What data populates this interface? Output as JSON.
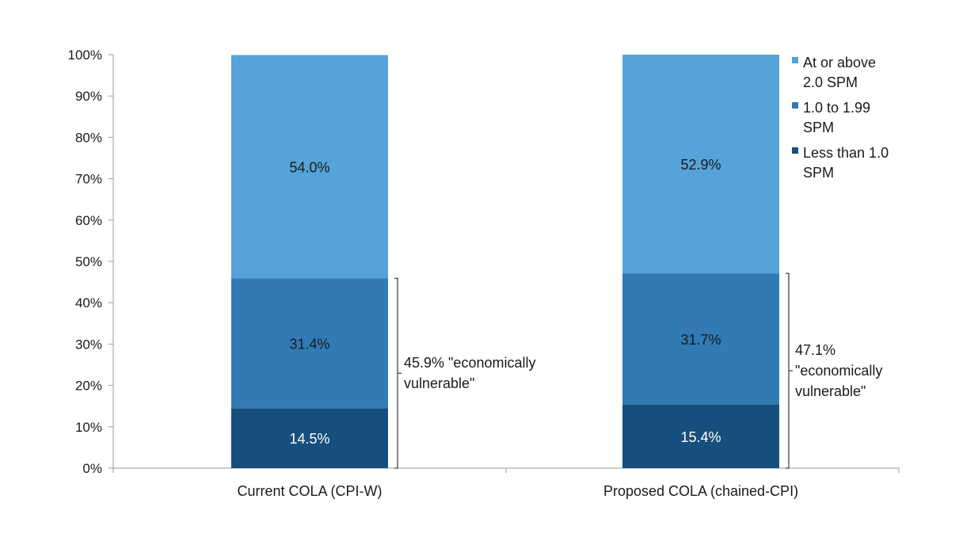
{
  "chart_data": {
    "type": "bar",
    "stacked": true,
    "categories": [
      "Current COLA (CPI-W)",
      "Proposed COLA (chained-CPI)"
    ],
    "series": [
      {
        "name": "Less than 1.0 SPM",
        "values": [
          14.5,
          15.4
        ],
        "labels": [
          "14.5%",
          "15.4%"
        ],
        "color": "#164f7e"
      },
      {
        "name": "1.0 to 1.99 SPM",
        "values": [
          31.4,
          31.7
        ],
        "labels": [
          "31.4%",
          "31.7%"
        ],
        "color": "#317ab3"
      },
      {
        "name": "At or above 2.0 SPM",
        "values": [
          54.0,
          52.9
        ],
        "labels": [
          "54.0%",
          "52.9%"
        ],
        "color": "#55a3d9"
      }
    ],
    "legend_order": [
      2,
      1,
      0
    ],
    "legend": {
      "placement": "top-right",
      "entries": [
        {
          "lines": [
            "At or above",
            "2.0 SPM"
          ],
          "color": "#55a3d9"
        },
        {
          "lines": [
            "1.0 to 1.99",
            "SPM"
          ],
          "color": "#317ab3"
        },
        {
          "lines": [
            "Less than 1.0",
            "SPM"
          ],
          "color": "#164f7e"
        }
      ]
    },
    "ylim": [
      0,
      100
    ],
    "yticks": [
      "0%",
      "10%",
      "20%",
      "30%",
      "40%",
      "50%",
      "60%",
      "70%",
      "80%",
      "90%",
      "100%"
    ],
    "grid": false,
    "annotations": [
      {
        "category": 0,
        "from": 0,
        "to": 45.9,
        "lines": [
          "45.9% \"economically",
          "vulnerable\""
        ]
      },
      {
        "category": 1,
        "from": 0,
        "to": 47.1,
        "lines": [
          "47.1%",
          "\"economically",
          "vulnerable\""
        ]
      }
    ],
    "title": "",
    "xlabel": "",
    "ylabel": ""
  }
}
